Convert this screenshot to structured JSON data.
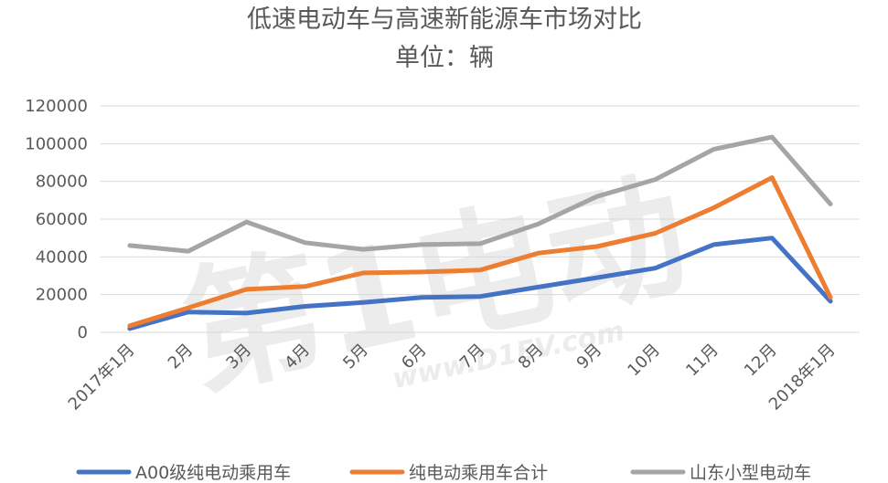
{
  "chart_data": {
    "type": "line",
    "title": "低速电动车与高速新能源车市场对比",
    "subtitle": "单位：辆",
    "categories": [
      "2017年1月",
      "2月",
      "3月",
      "4月",
      "5月",
      "6月",
      "7月",
      "8月",
      "9月",
      "10月",
      "11月",
      "12月",
      "2018年1月"
    ],
    "series": [
      {
        "name": "A00级纯电动乘用车",
        "color": "#4472c4",
        "values": [
          2000,
          10800,
          10200,
          13800,
          15800,
          18500,
          19000,
          24000,
          29000,
          34000,
          46500,
          50000,
          16500
        ]
      },
      {
        "name": "纯电动乘用车合计",
        "color": "#ed7d31",
        "values": [
          3500,
          13000,
          22800,
          24300,
          31500,
          32000,
          33000,
          42000,
          45500,
          52500,
          66000,
          82000,
          18500
        ]
      },
      {
        "name": "山东小型电动车",
        "color": "#a5a5a5",
        "values": [
          46000,
          43000,
          58500,
          47500,
          44000,
          46500,
          47000,
          57500,
          72000,
          81000,
          97000,
          103500,
          68000
        ]
      }
    ],
    "ylim": [
      0,
      120000
    ],
    "yticks": [
      0,
      20000,
      40000,
      60000,
      80000,
      100000,
      120000
    ],
    "grid": true,
    "legend_position": "bottom",
    "watermark": "第1电动 www.D1EV.com"
  }
}
